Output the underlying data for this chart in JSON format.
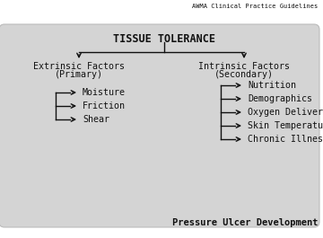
{
  "title_top_right": "AWMA Clinical Practice Guidelines",
  "title_main": "TISSUE TOLERANCE",
  "left_header_line1": "Extrinsic Factors",
  "left_header_line2": "(Primary)",
  "right_header_line1": "Intrinsic Factors",
  "right_header_line2": "(Secondary)",
  "left_items": [
    "Moisture",
    "Friction",
    "Shear"
  ],
  "right_items": [
    "Nutrition",
    "Demographics",
    "Oxygen Delivery",
    "Skin Temperature",
    "Chronic Illness"
  ],
  "footer": "Pressure Ulcer Development",
  "bg_color": "#d4d4d4",
  "text_color": "#111111",
  "arrow_color": "#111111",
  "outer_bg": "#ffffff",
  "box_edge_color": "#bbbbbb"
}
